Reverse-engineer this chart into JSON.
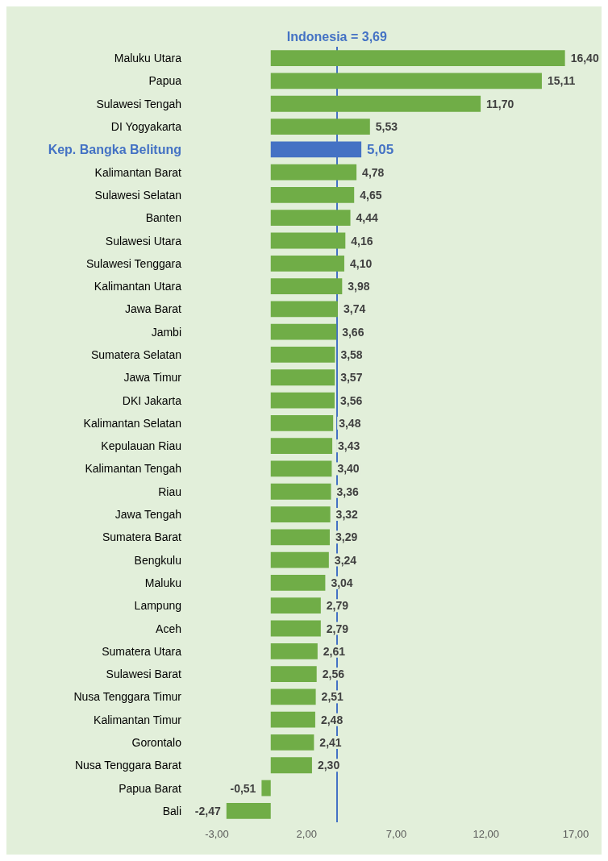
{
  "chart_data": {
    "type": "bar",
    "orientation": "horizontal",
    "categories": [
      "Maluku Utara",
      "Papua",
      "Sulawesi Tengah",
      "DI Yogyakarta",
      "Kep. Bangka Belitung",
      "Kalimantan Barat",
      "Sulawesi Selatan",
      "Banten",
      "Sulawesi Utara",
      "Sulawesi Tenggara",
      "Kalimantan Utara",
      "Jawa Barat",
      "Jambi",
      "Sumatera Selatan",
      "Jawa Timur",
      "DKI Jakarta",
      "Kalimantan Selatan",
      "Kepulauan Riau",
      "Kalimantan Tengah",
      "Riau",
      "Jawa Tengah",
      "Sumatera Barat",
      "Bengkulu",
      "Maluku",
      "Lampung",
      "Aceh",
      "Sumatera Utara",
      "Sulawesi Barat",
      "Nusa Tenggara Timur",
      "Kalimantan Timur",
      "Gorontalo",
      "Nusa Tenggara Barat",
      "Papua Barat",
      "Bali"
    ],
    "values": [
      16.4,
      15.11,
      11.7,
      5.53,
      5.05,
      4.78,
      4.65,
      4.44,
      4.16,
      4.1,
      3.98,
      3.74,
      3.66,
      3.58,
      3.57,
      3.56,
      3.48,
      3.43,
      3.4,
      3.36,
      3.32,
      3.29,
      3.24,
      3.04,
      2.79,
      2.79,
      2.61,
      2.56,
      2.51,
      2.48,
      2.41,
      2.3,
      -0.51,
      -2.47
    ],
    "value_labels": [
      "16,40",
      "15,11",
      "11,70",
      "5,53",
      "5,05",
      "4,78",
      "4,65",
      "4,44",
      "4,16",
      "4,10",
      "3,98",
      "3,74",
      "3,66",
      "3,58",
      "3,57",
      "3,56",
      "3,48",
      "3,43",
      "3,40",
      "3,36",
      "3,32",
      "3,29",
      "3,24",
      "3,04",
      "2,79",
      "2,79",
      "2,61",
      "2,56",
      "2,51",
      "2,48",
      "2,41",
      "2,30",
      "-0,51",
      "-2,47"
    ],
    "color": "#70ad47",
    "colors": [
      "#70ad47",
      "#70ad47",
      "#70ad47",
      "#70ad47",
      "#4472c4",
      "#70ad47",
      "#70ad47",
      "#70ad47",
      "#70ad47",
      "#70ad47",
      "#70ad47",
      "#70ad47",
      "#70ad47",
      "#70ad47",
      "#70ad47",
      "#70ad47",
      "#70ad47",
      "#70ad47",
      "#70ad47",
      "#70ad47",
      "#70ad47",
      "#70ad47",
      "#70ad47",
      "#70ad47",
      "#70ad47",
      "#70ad47",
      "#70ad47",
      "#70ad47",
      "#70ad47",
      "#70ad47",
      "#70ad47",
      "#70ad47",
      "#70ad47",
      "#70ad47"
    ],
    "xlim": [
      -3,
      17
    ],
    "xticks": [
      {
        "value": -3,
        "label": "-3,00"
      },
      {
        "value": 2,
        "label": "2,00"
      },
      {
        "value": 7,
        "label": "7,00"
      },
      {
        "value": 12,
        "label": "12,00"
      },
      {
        "value": 17,
        "label": "17,00"
      }
    ],
    "ref_lines": [
      {
        "axis": "x",
        "value": 3.69,
        "label": "Indonesia = 3,69",
        "color": "#4472c4"
      }
    ],
    "grid": false
  }
}
